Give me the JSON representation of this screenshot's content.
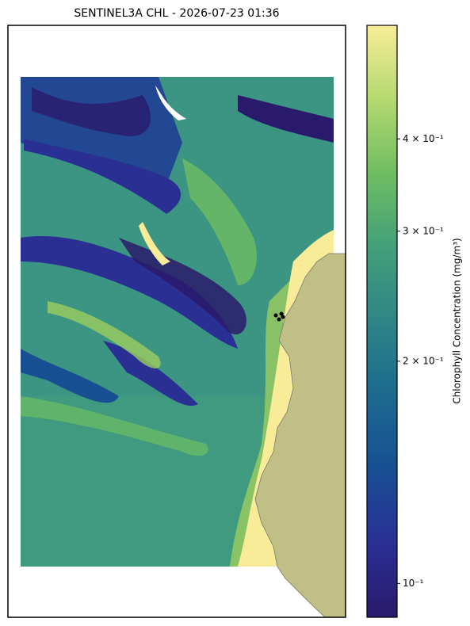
{
  "chart_data": {
    "type": "map",
    "title": "SENTINEL3A CHL - 2026-07-23 01:36",
    "colorbar_label": "Chlorophyll Concentration (mg/m³)",
    "colorbar_scale": "log",
    "clim": [
      0.09,
      0.57
    ],
    "cticks": [
      {
        "value": 0.1,
        "label": "10⁻¹"
      },
      {
        "value": 0.2,
        "label": "2 × 10⁻¹"
      },
      {
        "value": 0.3,
        "label": "3 × 10⁻¹"
      },
      {
        "value": 0.4,
        "label": "4 × 10⁻¹"
      }
    ],
    "colormap": [
      "#2a1a6b",
      "#2a2f94",
      "#184f93",
      "#1c6a8f",
      "#2f8587",
      "#42a07a",
      "#6fbd62",
      "#b5d870",
      "#f8ec98"
    ],
    "land_color": "#bfbf86"
  }
}
